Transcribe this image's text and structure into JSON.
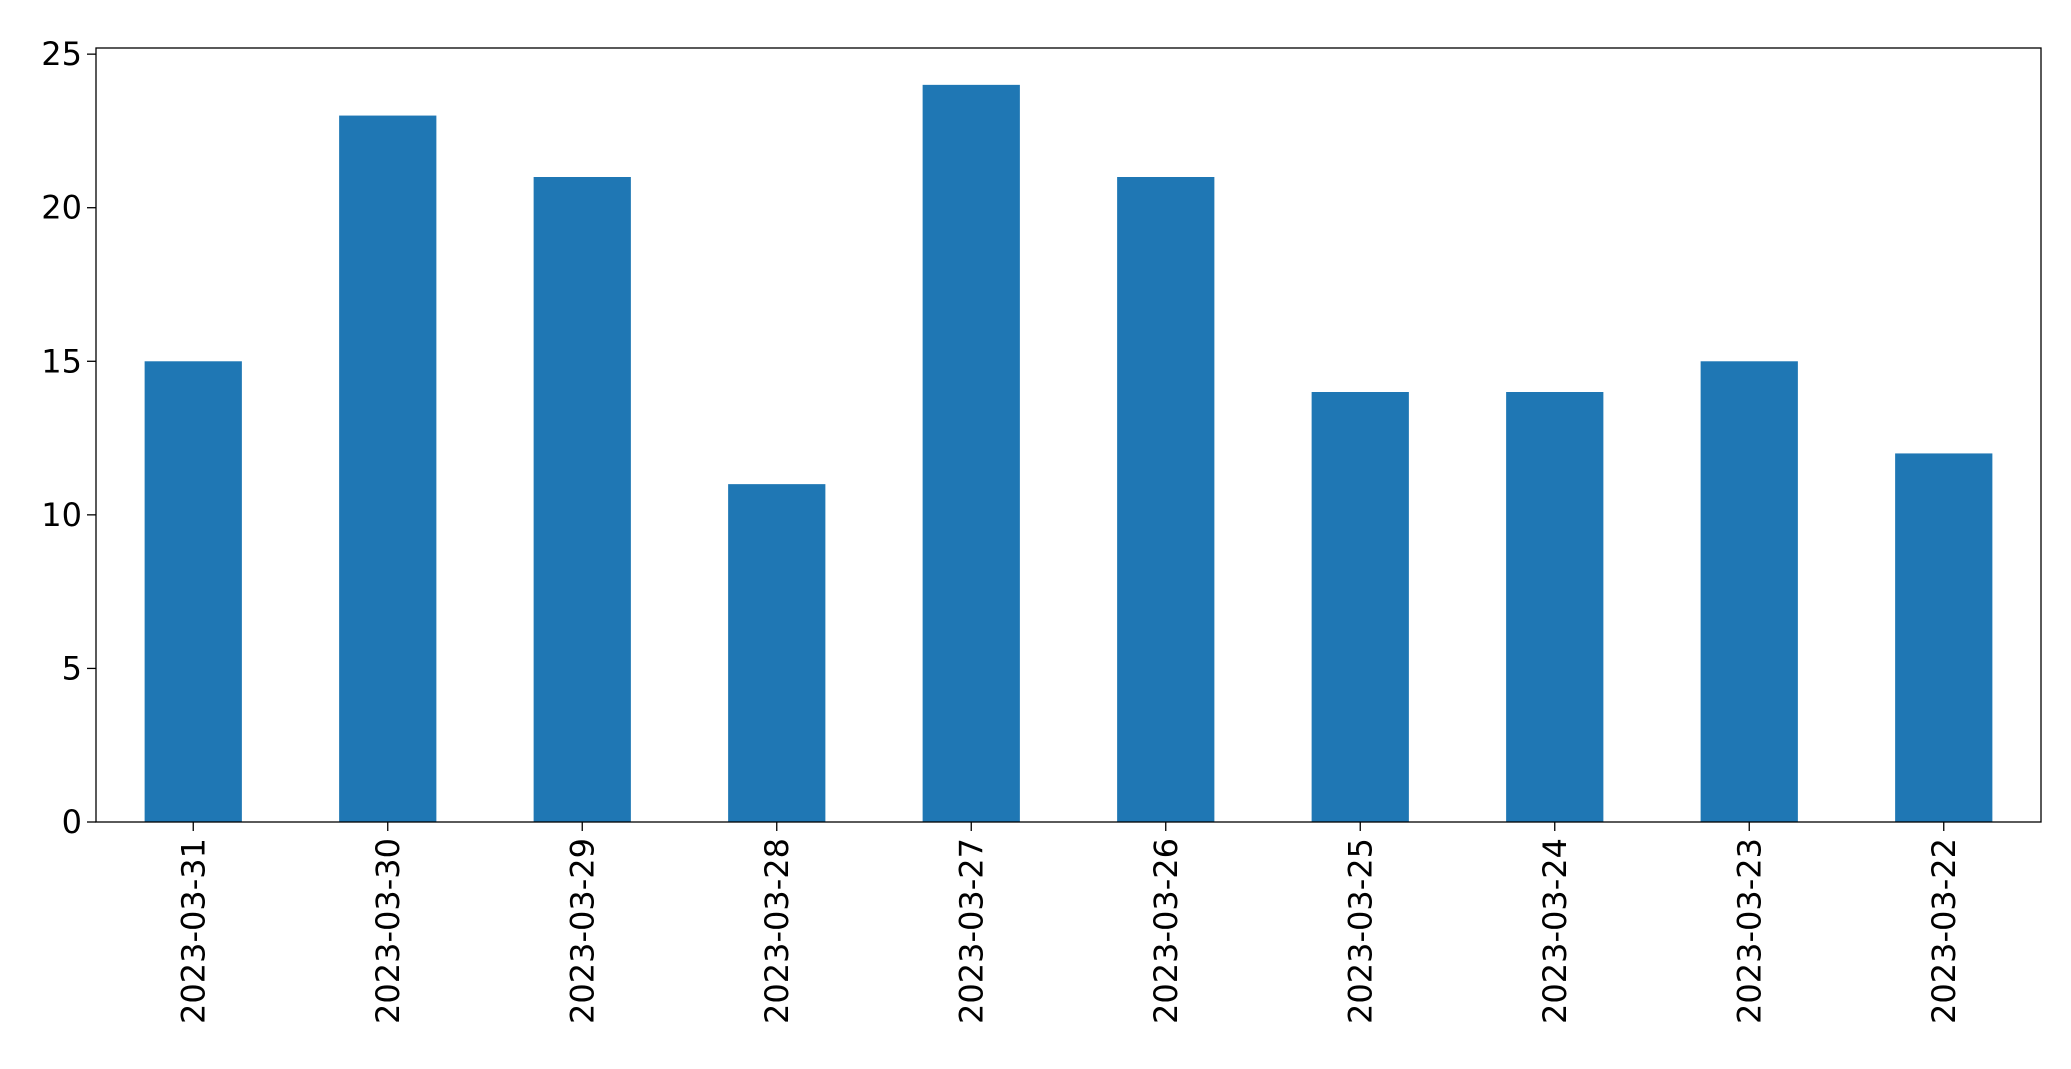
{
  "chart_data": {
    "type": "bar",
    "categories": [
      "2023-03-31",
      "2023-03-30",
      "2023-03-29",
      "2023-03-28",
      "2023-03-27",
      "2023-03-26",
      "2023-03-25",
      "2023-03-24",
      "2023-03-23",
      "2023-03-22"
    ],
    "values": [
      15,
      23,
      21,
      11,
      24,
      21,
      14,
      14,
      15,
      12
    ],
    "color": "#1f77b4",
    "ylim": [
      0,
      25.2
    ],
    "yticks": [
      0,
      5,
      10,
      15,
      20,
      25
    ],
    "grid": false
  }
}
